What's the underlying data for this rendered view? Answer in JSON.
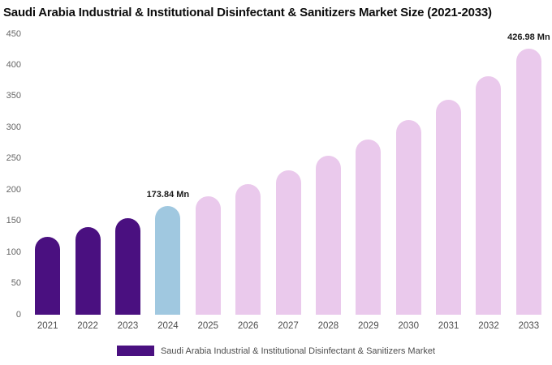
{
  "chart_data": {
    "type": "bar",
    "title": "Saudi Arabia Industrial & Institutional Disinfectant & Sanitizers Market Size (2021-2033)",
    "legend": "Saudi Arabia Industrial & Institutional Disinfectant & Sanitizers Market",
    "xlabel": "",
    "ylabel": "",
    "unit": "Mn",
    "ylim": [
      0,
      450
    ],
    "y_ticks": [
      0,
      50,
      100,
      150,
      200,
      250,
      300,
      350,
      400,
      450
    ],
    "grid": false,
    "legend_position": "bottom-center",
    "colors": {
      "historical": "#4a1080",
      "current": "#a0c8e0",
      "forecast": "#eac9ec"
    },
    "categories": [
      "2021",
      "2022",
      "2023",
      "2024",
      "2025",
      "2026",
      "2027",
      "2028",
      "2029",
      "2030",
      "2031",
      "2032",
      "2033"
    ],
    "points": [
      {
        "year": "2021",
        "value": 125,
        "segment": "historical"
      },
      {
        "year": "2022",
        "value": 140,
        "segment": "historical"
      },
      {
        "year": "2023",
        "value": 155,
        "segment": "historical"
      },
      {
        "year": "2024",
        "value": 173.84,
        "segment": "current",
        "label": "173.84 Mn"
      },
      {
        "year": "2025",
        "value": 190,
        "segment": "forecast"
      },
      {
        "year": "2026",
        "value": 210,
        "segment": "forecast"
      },
      {
        "year": "2027",
        "value": 231,
        "segment": "forecast"
      },
      {
        "year": "2028",
        "value": 255,
        "segment": "forecast"
      },
      {
        "year": "2029",
        "value": 281,
        "segment": "forecast"
      },
      {
        "year": "2030",
        "value": 312,
        "segment": "forecast"
      },
      {
        "year": "2031",
        "value": 345,
        "segment": "forecast"
      },
      {
        "year": "2032",
        "value": 383,
        "segment": "forecast"
      },
      {
        "year": "2033",
        "value": 426.98,
        "segment": "forecast",
        "label": "426.98 Mn"
      }
    ]
  }
}
